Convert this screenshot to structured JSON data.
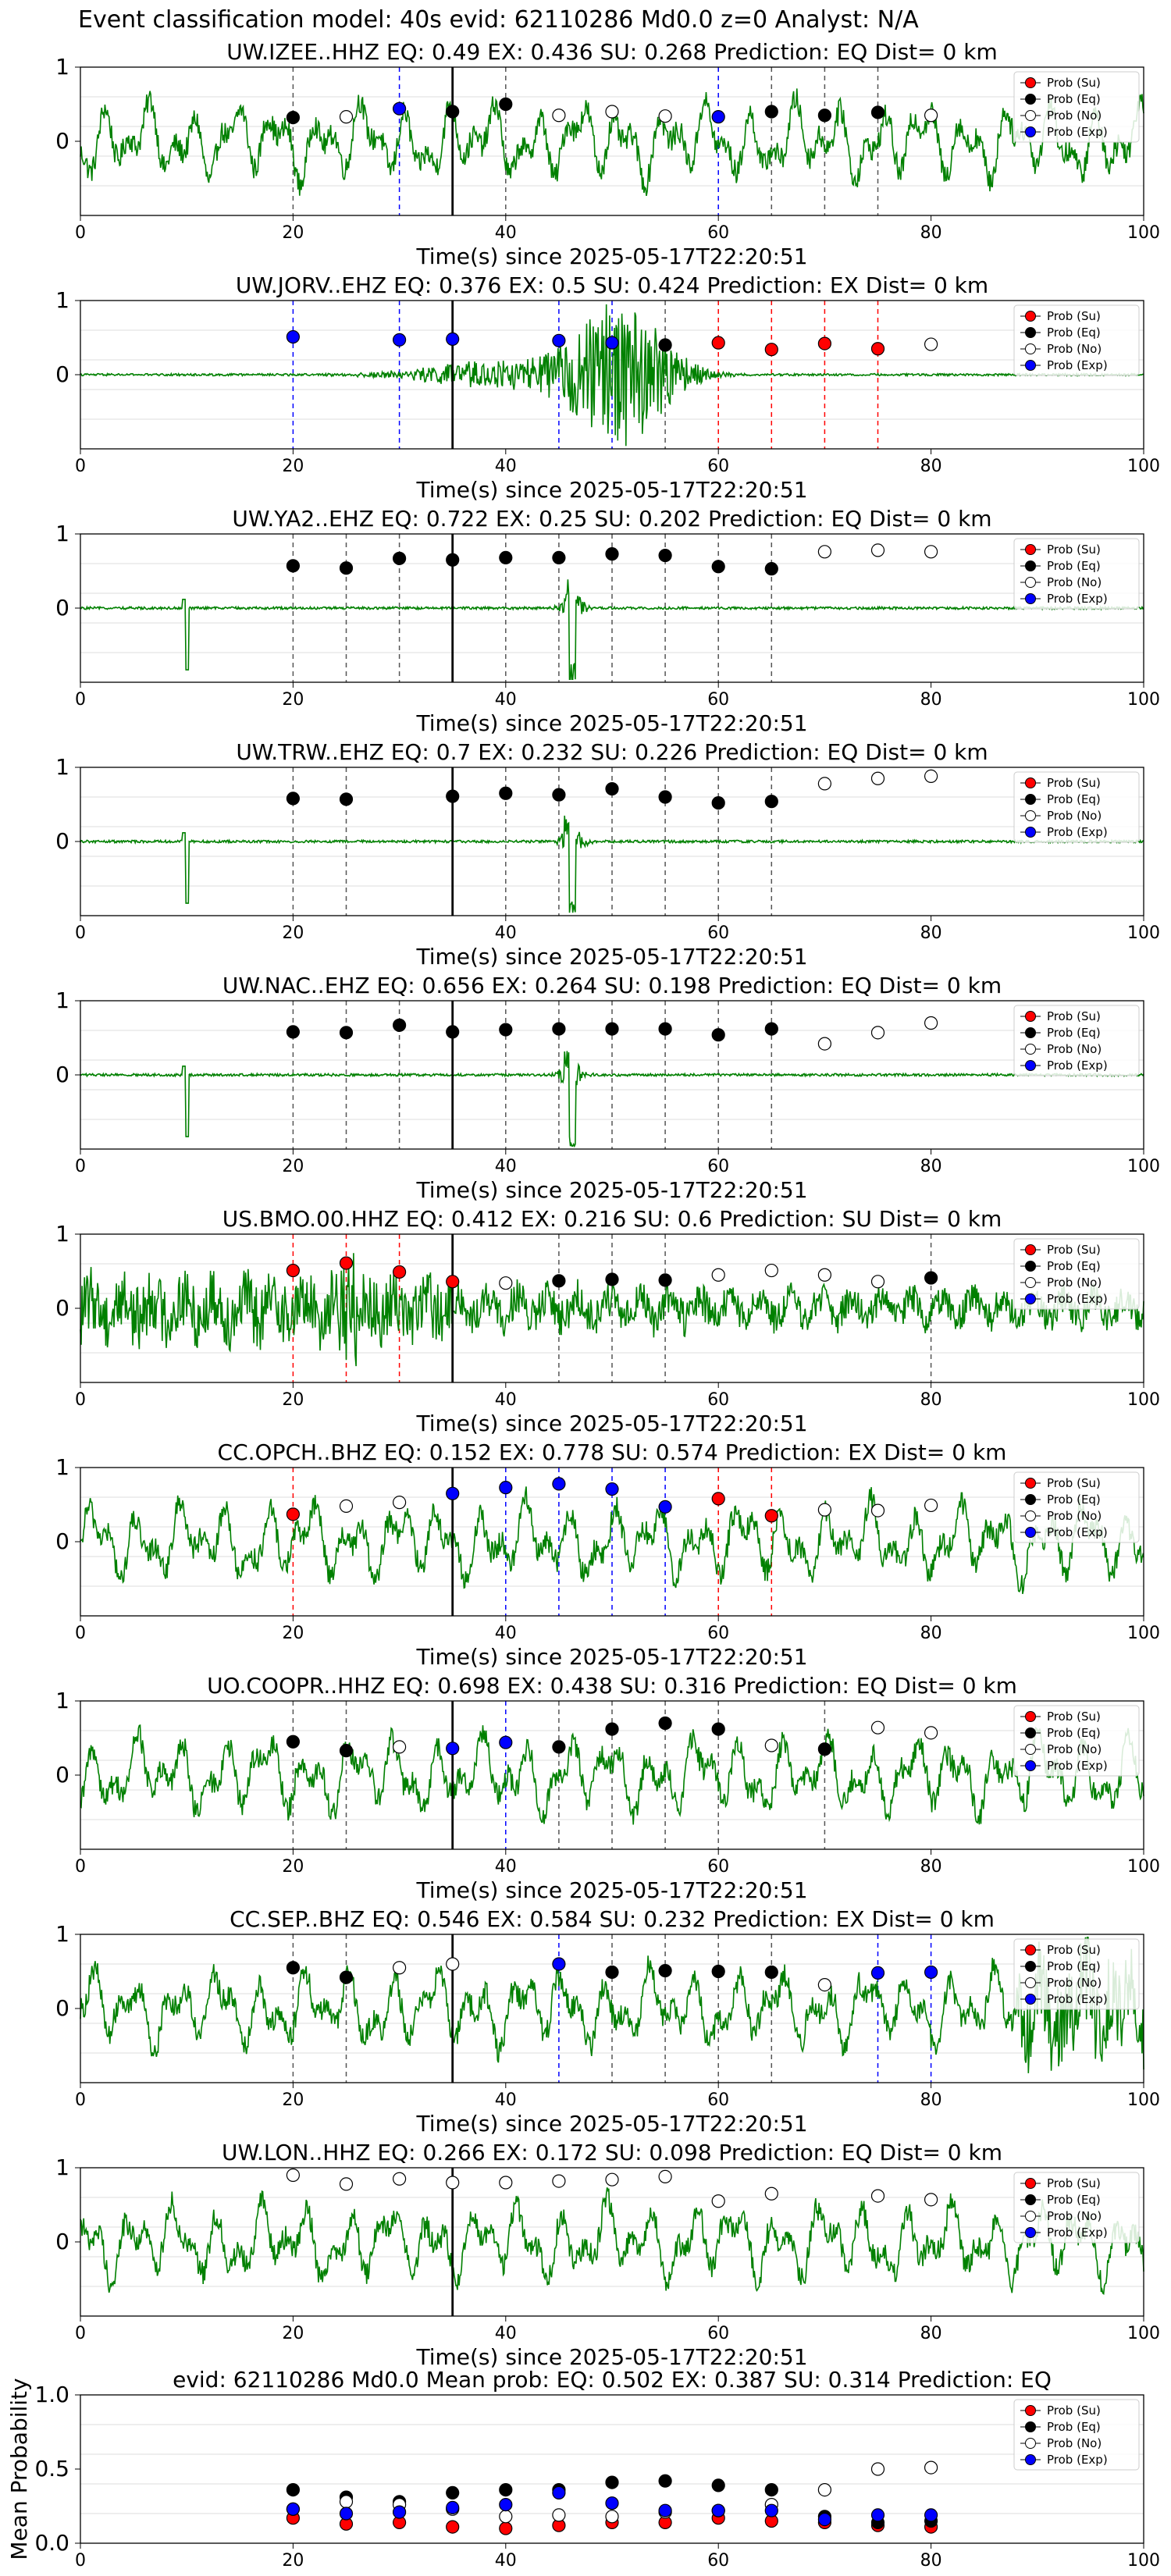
{
  "figure_title": "Event classification model: 40s evid: 62110286 Md0.0 z=0 Analyst: N/A",
  "colors": {
    "waveform": "#008000",
    "su": "#ff0000",
    "eq": "#000000",
    "no": "#ffffff",
    "exp": "#0000ff",
    "grid": "#dddddd",
    "event_line": "#000000"
  },
  "legend_labels": [
    "Prob (Su)",
    "Prob (Eq)",
    "Prob (No)",
    "Prob (Exp)"
  ],
  "chart_data": [
    {
      "type": "line",
      "title": "UW.IZEE..HHZ   EQ: 0.49  EX: 0.436  SU: 0.268   Prediction: EQ    Dist= 0 km",
      "xlabel": "Time(s) since 2025-05-17T22:20:51",
      "xlim": [
        0,
        100
      ],
      "ylim": [
        -1,
        1
      ],
      "yticks": [
        0,
        1
      ],
      "xticks": [
        0,
        20,
        40,
        60,
        80,
        100
      ],
      "event_time": 35,
      "amplitude_style": "noisy",
      "grid": true,
      "legend_position": "top-right",
      "windows": [
        {
          "t": 20,
          "cls": "Eq",
          "p": 0.32
        },
        {
          "t": 25,
          "cls": "No",
          "p": 0.33
        },
        {
          "t": 30,
          "cls": "Exp",
          "p": 0.44
        },
        {
          "t": 35,
          "cls": "Eq",
          "p": 0.4
        },
        {
          "t": 40,
          "cls": "Eq",
          "p": 0.5
        },
        {
          "t": 45,
          "cls": "No",
          "p": 0.35
        },
        {
          "t": 50,
          "cls": "No",
          "p": 0.4
        },
        {
          "t": 55,
          "cls": "No",
          "p": 0.34
        },
        {
          "t": 60,
          "cls": "Exp",
          "p": 0.33
        },
        {
          "t": 65,
          "cls": "Eq",
          "p": 0.4
        },
        {
          "t": 70,
          "cls": "Eq",
          "p": 0.35
        },
        {
          "t": 75,
          "cls": "Eq",
          "p": 0.39
        },
        {
          "t": 80,
          "cls": "No",
          "p": 0.35
        }
      ]
    },
    {
      "type": "line",
      "title": "UW.JORV..EHZ   EQ: 0.376  EX: 0.5  SU: 0.424   Prediction: EX    Dist= 0 km",
      "xlabel": "Time(s) since 2025-05-17T22:20:51",
      "xlim": [
        0,
        100
      ],
      "ylim": [
        -1,
        1
      ],
      "yticks": [
        0,
        1
      ],
      "xticks": [
        0,
        20,
        40,
        60,
        80,
        100
      ],
      "event_time": 35,
      "amplitude_style": "burst",
      "grid": true,
      "legend_position": "top-right",
      "windows": [
        {
          "t": 20,
          "cls": "Exp",
          "p": 0.51
        },
        {
          "t": 30,
          "cls": "Exp",
          "p": 0.47
        },
        {
          "t": 35,
          "cls": "Exp",
          "p": 0.48
        },
        {
          "t": 45,
          "cls": "Exp",
          "p": 0.46
        },
        {
          "t": 50,
          "cls": "Exp",
          "p": 0.43
        },
        {
          "t": 55,
          "cls": "Eq",
          "p": 0.4
        },
        {
          "t": 60,
          "cls": "Su",
          "p": 0.43
        },
        {
          "t": 65,
          "cls": "Su",
          "p": 0.34
        },
        {
          "t": 70,
          "cls": "Su",
          "p": 0.42
        },
        {
          "t": 75,
          "cls": "Su",
          "p": 0.35
        },
        {
          "t": 80,
          "cls": "No",
          "p": 0.41
        }
      ]
    },
    {
      "type": "line",
      "title": "UW.YA2..EHZ   EQ: 0.722  EX: 0.25  SU: 0.202   Prediction: EQ    Dist= 0 km",
      "xlabel": "Time(s) since 2025-05-17T22:20:51",
      "xlim": [
        0,
        100
      ],
      "ylim": [
        -1,
        1
      ],
      "yticks": [
        0,
        1
      ],
      "xticks": [
        0,
        20,
        40,
        60,
        80,
        100
      ],
      "event_time": 35,
      "amplitude_style": "spike",
      "grid": true,
      "legend_position": "top-right",
      "windows": [
        {
          "t": 20,
          "cls": "Eq",
          "p": 0.57
        },
        {
          "t": 25,
          "cls": "Eq",
          "p": 0.54
        },
        {
          "t": 30,
          "cls": "Eq",
          "p": 0.67
        },
        {
          "t": 35,
          "cls": "Eq",
          "p": 0.65
        },
        {
          "t": 40,
          "cls": "Eq",
          "p": 0.68
        },
        {
          "t": 45,
          "cls": "Eq",
          "p": 0.68
        },
        {
          "t": 50,
          "cls": "Eq",
          "p": 0.73
        },
        {
          "t": 55,
          "cls": "Eq",
          "p": 0.71
        },
        {
          "t": 60,
          "cls": "Eq",
          "p": 0.56
        },
        {
          "t": 65,
          "cls": "Eq",
          "p": 0.53
        },
        {
          "t": 70,
          "cls": "No",
          "p": 0.76
        },
        {
          "t": 75,
          "cls": "No",
          "p": 0.78
        },
        {
          "t": 80,
          "cls": "No",
          "p": 0.76
        }
      ]
    },
    {
      "type": "line",
      "title": "UW.TRW..EHZ   EQ: 0.7  EX: 0.232  SU: 0.226   Prediction: EQ    Dist= 0 km",
      "xlabel": "Time(s) since 2025-05-17T22:20:51",
      "xlim": [
        0,
        100
      ],
      "ylim": [
        -1,
        1
      ],
      "yticks": [
        0,
        1
      ],
      "xticks": [
        0,
        20,
        40,
        60,
        80,
        100
      ],
      "event_time": 35,
      "amplitude_style": "spike",
      "grid": true,
      "legend_position": "top-right",
      "windows": [
        {
          "t": 20,
          "cls": "Eq",
          "p": 0.58
        },
        {
          "t": 25,
          "cls": "Eq",
          "p": 0.57
        },
        {
          "t": 35,
          "cls": "Eq",
          "p": 0.61
        },
        {
          "t": 40,
          "cls": "Eq",
          "p": 0.65
        },
        {
          "t": 45,
          "cls": "Eq",
          "p": 0.63
        },
        {
          "t": 50,
          "cls": "Eq",
          "p": 0.71
        },
        {
          "t": 55,
          "cls": "Eq",
          "p": 0.6
        },
        {
          "t": 60,
          "cls": "Eq",
          "p": 0.52
        },
        {
          "t": 65,
          "cls": "Eq",
          "p": 0.54
        },
        {
          "t": 70,
          "cls": "No",
          "p": 0.78
        },
        {
          "t": 75,
          "cls": "No",
          "p": 0.85
        },
        {
          "t": 80,
          "cls": "No",
          "p": 0.88
        }
      ]
    },
    {
      "type": "line",
      "title": "UW.NAC..EHZ   EQ: 0.656  EX: 0.264  SU: 0.198   Prediction: EQ    Dist= 0 km",
      "xlabel": "Time(s) since 2025-05-17T22:20:51",
      "xlim": [
        0,
        100
      ],
      "ylim": [
        -1,
        1
      ],
      "yticks": [
        0,
        1
      ],
      "xticks": [
        0,
        20,
        40,
        60,
        80,
        100
      ],
      "event_time": 35,
      "amplitude_style": "spike",
      "grid": true,
      "legend_position": "top-right",
      "windows": [
        {
          "t": 20,
          "cls": "Eq",
          "p": 0.58
        },
        {
          "t": 25,
          "cls": "Eq",
          "p": 0.57
        },
        {
          "t": 30,
          "cls": "Eq",
          "p": 0.67
        },
        {
          "t": 35,
          "cls": "Eq",
          "p": 0.58
        },
        {
          "t": 40,
          "cls": "Eq",
          "p": 0.61
        },
        {
          "t": 45,
          "cls": "Eq",
          "p": 0.62
        },
        {
          "t": 50,
          "cls": "Eq",
          "p": 0.62
        },
        {
          "t": 55,
          "cls": "Eq",
          "p": 0.62
        },
        {
          "t": 60,
          "cls": "Eq",
          "p": 0.54
        },
        {
          "t": 65,
          "cls": "Eq",
          "p": 0.62
        },
        {
          "t": 70,
          "cls": "No",
          "p": 0.42
        },
        {
          "t": 75,
          "cls": "No",
          "p": 0.57
        },
        {
          "t": 80,
          "cls": "No",
          "p": 0.7
        }
      ]
    },
    {
      "type": "line",
      "title": "US.BMO.00.HHZ   EQ: 0.412  EX: 0.216  SU: 0.6   Prediction: SU    Dist= 0 km",
      "xlabel": "Time(s) since 2025-05-17T22:20:51",
      "xlim": [
        0,
        100
      ],
      "ylim": [
        -1,
        1
      ],
      "yticks": [
        0,
        1
      ],
      "xticks": [
        0,
        20,
        40,
        60,
        80,
        100
      ],
      "event_time": 35,
      "amplitude_style": "hf",
      "grid": true,
      "legend_position": "top-right",
      "windows": [
        {
          "t": 20,
          "cls": "Su",
          "p": 0.51
        },
        {
          "t": 25,
          "cls": "Su",
          "p": 0.61
        },
        {
          "t": 30,
          "cls": "Su",
          "p": 0.49
        },
        {
          "t": 35,
          "cls": "Su",
          "p": 0.36
        },
        {
          "t": 40,
          "cls": "No",
          "p": 0.34
        },
        {
          "t": 45,
          "cls": "Eq",
          "p": 0.37
        },
        {
          "t": 50,
          "cls": "Eq",
          "p": 0.39
        },
        {
          "t": 55,
          "cls": "Eq",
          "p": 0.38
        },
        {
          "t": 60,
          "cls": "No",
          "p": 0.45
        },
        {
          "t": 65,
          "cls": "No",
          "p": 0.51
        },
        {
          "t": 70,
          "cls": "No",
          "p": 0.45
        },
        {
          "t": 75,
          "cls": "No",
          "p": 0.36
        },
        {
          "t": 80,
          "cls": "Eq",
          "p": 0.41
        }
      ]
    },
    {
      "type": "line",
      "title": "CC.OPCH..BHZ   EQ: 0.152  EX: 0.778  SU: 0.574   Prediction: EX    Dist= 0 km",
      "xlabel": "Time(s) since 2025-05-17T22:20:51",
      "xlim": [
        0,
        100
      ],
      "ylim": [
        -1,
        1
      ],
      "yticks": [
        0,
        1
      ],
      "xticks": [
        0,
        20,
        40,
        60,
        80,
        100
      ],
      "event_time": 35,
      "amplitude_style": "noisy",
      "grid": true,
      "legend_position": "top-right",
      "windows": [
        {
          "t": 20,
          "cls": "Su",
          "p": 0.37
        },
        {
          "t": 25,
          "cls": "No",
          "p": 0.48
        },
        {
          "t": 30,
          "cls": "No",
          "p": 0.53
        },
        {
          "t": 35,
          "cls": "Exp",
          "p": 0.65
        },
        {
          "t": 40,
          "cls": "Exp",
          "p": 0.73
        },
        {
          "t": 45,
          "cls": "Exp",
          "p": 0.78
        },
        {
          "t": 50,
          "cls": "Exp",
          "p": 0.71
        },
        {
          "t": 55,
          "cls": "Exp",
          "p": 0.47
        },
        {
          "t": 60,
          "cls": "Su",
          "p": 0.58
        },
        {
          "t": 65,
          "cls": "Su",
          "p": 0.35
        },
        {
          "t": 70,
          "cls": "No",
          "p": 0.43
        },
        {
          "t": 75,
          "cls": "No",
          "p": 0.42
        },
        {
          "t": 80,
          "cls": "No",
          "p": 0.49
        }
      ]
    },
    {
      "type": "line",
      "title": "UO.COOPR..HHZ   EQ: 0.698  EX: 0.438  SU: 0.316   Prediction: EQ    Dist= 0 km",
      "xlabel": "Time(s) since 2025-05-17T22:20:51",
      "xlim": [
        0,
        100
      ],
      "ylim": [
        -1,
        1
      ],
      "yticks": [
        0,
        1
      ],
      "xticks": [
        0,
        20,
        40,
        60,
        80,
        100
      ],
      "event_time": 35,
      "amplitude_style": "noisy",
      "grid": true,
      "legend_position": "top-right",
      "windows": [
        {
          "t": 20,
          "cls": "Eq",
          "p": 0.45
        },
        {
          "t": 25,
          "cls": "Eq",
          "p": 0.33
        },
        {
          "t": 30,
          "cls": "No",
          "p": 0.38
        },
        {
          "t": 35,
          "cls": "Exp",
          "p": 0.36
        },
        {
          "t": 40,
          "cls": "Exp",
          "p": 0.44
        },
        {
          "t": 45,
          "cls": "Eq",
          "p": 0.38
        },
        {
          "t": 50,
          "cls": "Eq",
          "p": 0.62
        },
        {
          "t": 55,
          "cls": "Eq",
          "p": 0.7
        },
        {
          "t": 60,
          "cls": "Eq",
          "p": 0.62
        },
        {
          "t": 65,
          "cls": "No",
          "p": 0.4
        },
        {
          "t": 70,
          "cls": "Eq",
          "p": 0.35
        },
        {
          "t": 75,
          "cls": "No",
          "p": 0.64
        },
        {
          "t": 80,
          "cls": "No",
          "p": 0.57
        }
      ]
    },
    {
      "type": "line",
      "title": "CC.SEP..BHZ   EQ: 0.546  EX: 0.584  SU: 0.232   Prediction: EX    Dist= 0 km",
      "xlabel": "Time(s) since 2025-05-17T22:20:51",
      "xlim": [
        0,
        100
      ],
      "ylim": [
        -1,
        1
      ],
      "yticks": [
        0,
        1
      ],
      "xticks": [
        0,
        20,
        40,
        60,
        80,
        100
      ],
      "event_time": 35,
      "amplitude_style": "noisy_end",
      "grid": true,
      "legend_position": "top-right",
      "windows": [
        {
          "t": 20,
          "cls": "Eq",
          "p": 0.55
        },
        {
          "t": 25,
          "cls": "Eq",
          "p": 0.42
        },
        {
          "t": 30,
          "cls": "No",
          "p": 0.55
        },
        {
          "t": 35,
          "cls": "No",
          "p": 0.6
        },
        {
          "t": 45,
          "cls": "Exp",
          "p": 0.6
        },
        {
          "t": 50,
          "cls": "Eq",
          "p": 0.49
        },
        {
          "t": 55,
          "cls": "Eq",
          "p": 0.51
        },
        {
          "t": 60,
          "cls": "Eq",
          "p": 0.5
        },
        {
          "t": 65,
          "cls": "Eq",
          "p": 0.49
        },
        {
          "t": 70,
          "cls": "No",
          "p": 0.32
        },
        {
          "t": 75,
          "cls": "Exp",
          "p": 0.48
        },
        {
          "t": 80,
          "cls": "Exp",
          "p": 0.49
        }
      ]
    },
    {
      "type": "line",
      "title": "UW.LON..HHZ   EQ: 0.266  EX: 0.172  SU: 0.098   Prediction: EQ    Dist= 0 km",
      "xlabel": "Time(s) since 2025-05-17T22:20:51",
      "xlim": [
        0,
        100
      ],
      "ylim": [
        -1,
        1
      ],
      "yticks": [
        0,
        1
      ],
      "xticks": [
        0,
        20,
        40,
        60,
        80,
        100
      ],
      "event_time": 35,
      "amplitude_style": "noisy",
      "grid": true,
      "legend_position": "top-right",
      "windows": [
        {
          "t": 20,
          "cls": "No",
          "p": 0.9
        },
        {
          "t": 25,
          "cls": "No",
          "p": 0.78
        },
        {
          "t": 30,
          "cls": "No",
          "p": 0.85
        },
        {
          "t": 35,
          "cls": "No",
          "p": 0.8
        },
        {
          "t": 40,
          "cls": "No",
          "p": 0.8
        },
        {
          "t": 45,
          "cls": "No",
          "p": 0.82
        },
        {
          "t": 50,
          "cls": "No",
          "p": 0.84
        },
        {
          "t": 55,
          "cls": "No",
          "p": 0.88
        },
        {
          "t": 60,
          "cls": "No",
          "p": 0.55
        },
        {
          "t": 65,
          "cls": "No",
          "p": 0.65
        },
        {
          "t": 75,
          "cls": "No",
          "p": 0.62
        },
        {
          "t": 80,
          "cls": "No",
          "p": 0.57
        }
      ]
    },
    {
      "type": "scatter",
      "title": "evid: 62110286  Md0.0   Mean prob:   EQ: 0.502  EX: 0.387  SU: 0.314   Prediction: EQ",
      "ylabel": "Mean Probability",
      "xlim": [
        0,
        100
      ],
      "ylim": [
        0,
        1
      ],
      "yticks": [
        0,
        0.5,
        1
      ],
      "ytick_labels": [
        "0.0",
        "0.5",
        "1.0"
      ],
      "xticks": [
        0,
        20,
        40,
        60,
        80,
        100
      ],
      "grid": true,
      "legend_position": "top-right",
      "x": [
        20,
        25,
        30,
        35,
        40,
        45,
        50,
        55,
        60,
        65,
        70,
        75,
        80
      ],
      "series": [
        {
          "name": "Prob (Su)",
          "values": [
            0.17,
            0.13,
            0.14,
            0.11,
            0.1,
            0.12,
            0.14,
            0.14,
            0.17,
            0.15,
            0.14,
            0.12,
            0.11
          ]
        },
        {
          "name": "Prob (Eq)",
          "values": [
            0.36,
            0.31,
            0.28,
            0.34,
            0.36,
            0.36,
            0.41,
            0.42,
            0.39,
            0.36,
            0.18,
            0.14,
            0.15
          ]
        },
        {
          "name": "Prob (No)",
          "values": [
            0.23,
            0.28,
            0.26,
            0.23,
            0.18,
            0.19,
            0.18,
            0.21,
            0.22,
            0.26,
            0.36,
            0.5,
            0.51
          ]
        },
        {
          "name": "Prob (Exp)",
          "values": [
            0.23,
            0.2,
            0.21,
            0.24,
            0.26,
            0.34,
            0.27,
            0.22,
            0.22,
            0.22,
            0.16,
            0.19,
            0.19
          ]
        }
      ]
    }
  ]
}
